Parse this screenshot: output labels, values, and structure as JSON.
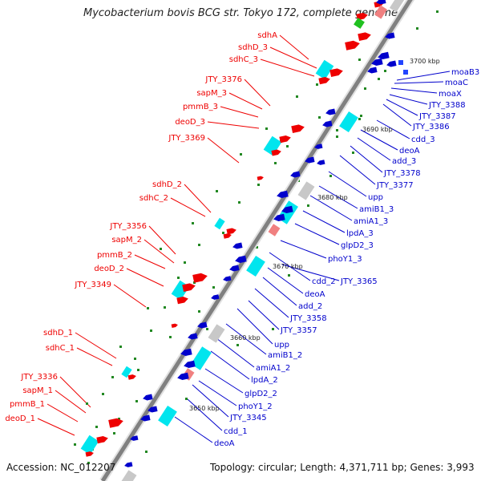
{
  "title": "Mycobacterium bovis BCG str. Tokyo 172, complete genome",
  "accession": "Accession: NC_012207",
  "topology": "Topology: circular; Length: 4,371,711 bp; Genes: 3,993",
  "colors": {
    "forward": "#ee0000",
    "reverse": "#0000cc",
    "cyan": "#00e5ee",
    "gray": "#c8c8c8",
    "pink": "#f08080",
    "tick": "#228822",
    "axis": "#808080"
  },
  "ticks": [
    "3650 kbp",
    "3660 kbp",
    "3670 kbp",
    "3680 kbp",
    "3690 kbp",
    "3700 kbp"
  ],
  "forward_labels": [
    "sdhA",
    "sdhD_3",
    "sdhC_3",
    "JTY_3376",
    "sapM_3",
    "pmmB_3",
    "deoD_3",
    "JTY_3369",
    "sdhD_2",
    "sdhC_2",
    "JTY_3356",
    "sapM_2",
    "pmmB_2",
    "deoD_2",
    "JTY_3349",
    "sdhD_1",
    "sdhC_1",
    "JTY_3336",
    "sapM_1",
    "pmmB_1",
    "deoD_1"
  ],
  "reverse_labels": [
    "moaB3",
    "moaC",
    "moaX",
    "JTY_3388",
    "JTY_3387",
    "JTY_3386",
    "cdd_3",
    "deoA",
    "add_3",
    "JTY_3378",
    "JTY_3377",
    "upp",
    "amiB1_3",
    "amiA1_3",
    "lpdA_3",
    "glpD2_3",
    "phoY1_3",
    "cdd_2",
    "JTY_3365",
    "deoA",
    "add_2",
    "JTY_3358",
    "JTY_3357",
    "upp",
    "amiB1_2",
    "amiA1_2",
    "lpdA_2",
    "glpD2_2",
    "phoY1_2",
    "JTY_3345",
    "cdd_1",
    "deoA"
  ]
}
